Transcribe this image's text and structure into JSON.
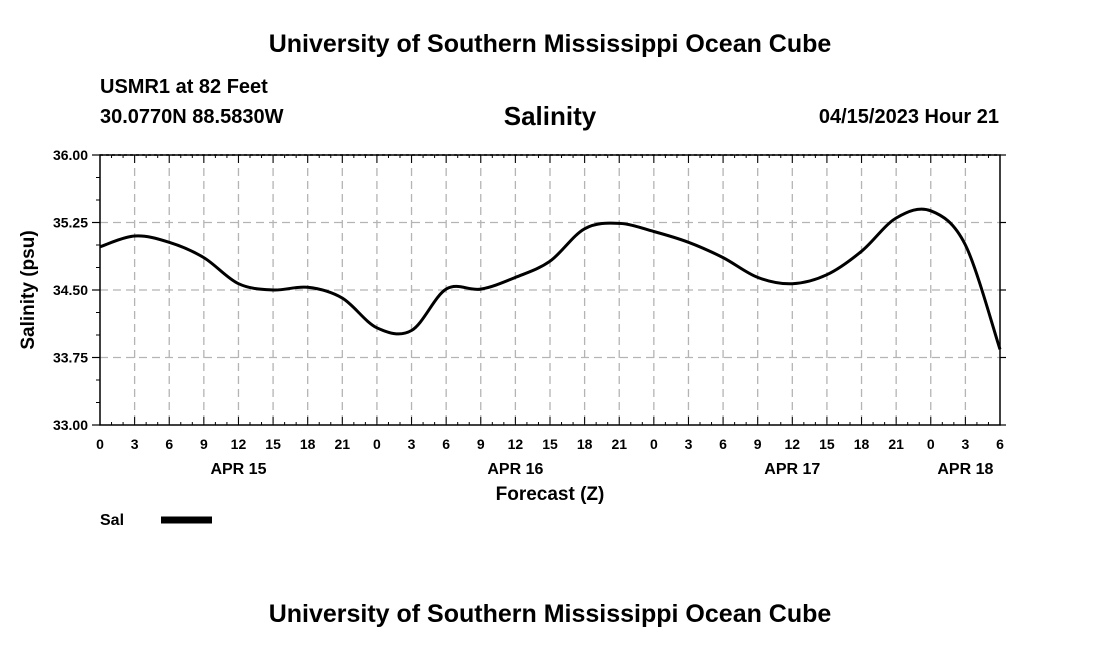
{
  "header": {
    "title_top": "University of Southern Mississippi Ocean Cube",
    "title_bottom": "University of Southern Mississippi Ocean Cube",
    "station": "USMR1 at 82 Feet",
    "coords": "30.0770N  88.5830W",
    "date": "04/15/2023 Hour 21"
  },
  "colors": {
    "line": "#000000",
    "grid": "#b4b4b4",
    "axis": "#000000"
  },
  "chart_data": {
    "type": "line",
    "title": "Salinity",
    "xlabel": "Forecast (Z)",
    "ylabel": "Salinity (psu)",
    "ylim": [
      33.0,
      36.0
    ],
    "xlim": [
      0,
      78
    ],
    "yticks": [
      "33.00",
      "33.75",
      "34.50",
      "35.25",
      "36.00"
    ],
    "ytick_values": [
      33.0,
      33.75,
      34.5,
      35.25,
      36.0
    ],
    "xtick_labels": [
      "0",
      "3",
      "6",
      "9",
      "12",
      "15",
      "18",
      "21",
      "0",
      "3",
      "6",
      "9",
      "12",
      "15",
      "18",
      "21",
      "0",
      "3",
      "6",
      "9",
      "12",
      "15",
      "18",
      "21",
      "0",
      "3",
      "6"
    ],
    "date_labels": [
      {
        "label": "APR 15",
        "hour": 12
      },
      {
        "label": "APR 16",
        "hour": 36
      },
      {
        "label": "APR 17",
        "hour": 60
      },
      {
        "label": "APR 18",
        "hour": 75
      }
    ],
    "legend": {
      "label": "Sal"
    },
    "series": [
      {
        "name": "Sal",
        "x": [
          0,
          3,
          6,
          9,
          12,
          15,
          18,
          21,
          24,
          27,
          30,
          33,
          36,
          39,
          42,
          45,
          48,
          51,
          54,
          57,
          60,
          63,
          66,
          69,
          72,
          75,
          78
        ],
        "values": [
          34.98,
          35.1,
          35.03,
          34.86,
          34.57,
          34.5,
          34.53,
          34.41,
          34.08,
          34.05,
          34.51,
          34.51,
          34.64,
          34.82,
          35.18,
          35.24,
          35.15,
          35.03,
          34.86,
          34.64,
          34.57,
          34.67,
          34.93,
          35.3,
          35.38,
          35.0,
          33.84
        ]
      }
    ]
  }
}
